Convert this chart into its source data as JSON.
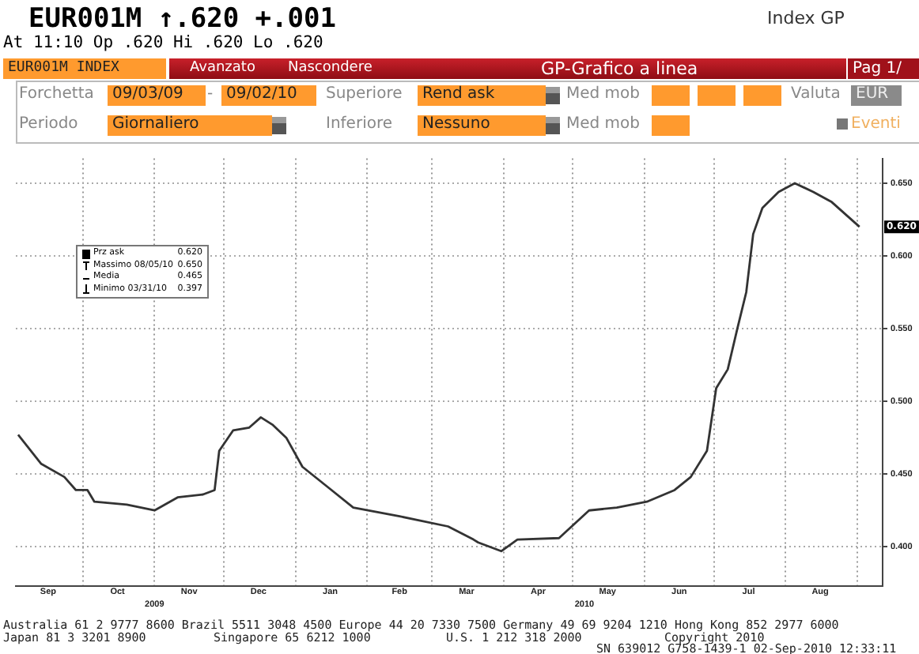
{
  "chart_data": {
    "type": "line",
    "title": "EUR001M ↑.620 +.001",
    "subtitle": "At 11:10  Op .620 Hi .620 Lo .620",
    "x": [
      "2009-09-03",
      "2009-09-13",
      "2009-09-23",
      "2009-09-28",
      "2009-10-03",
      "2009-10-06",
      "2009-10-20",
      "2009-11-01",
      "2009-11-11",
      "2009-11-22",
      "2009-11-27",
      "2009-11-29",
      "2009-12-05",
      "2009-12-12",
      "2009-12-17",
      "2009-12-22",
      "2009-12-28",
      "2010-01-04",
      "2010-01-15",
      "2010-01-26",
      "2010-02-15",
      "2010-03-08",
      "2010-03-19",
      "2010-03-21",
      "2010-03-31",
      "2010-04-07",
      "2010-04-25",
      "2010-05-08",
      "2010-05-20",
      "2010-06-02",
      "2010-06-14",
      "2010-06-21",
      "2010-06-28",
      "2010-07-02",
      "2010-07-07",
      "2010-07-11",
      "2010-07-15",
      "2010-07-18",
      "2010-07-22",
      "2010-07-29",
      "2010-08-05",
      "2010-08-13",
      "2010-08-21",
      "2010-09-02"
    ],
    "series": [
      {
        "name": "Prz ask",
        "color": "#333333",
        "values": [
          0.477,
          0.457,
          0.448,
          0.439,
          0.439,
          0.431,
          0.429,
          0.425,
          0.434,
          0.436,
          0.439,
          0.466,
          0.48,
          0.482,
          0.489,
          0.484,
          0.475,
          0.455,
          0.441,
          0.427,
          0.421,
          0.414,
          0.405,
          0.403,
          0.397,
          0.405,
          0.406,
          0.425,
          0.427,
          0.431,
          0.439,
          0.448,
          0.466,
          0.509,
          0.522,
          0.549,
          0.575,
          0.615,
          0.633,
          0.644,
          0.65,
          0.644,
          0.637,
          0.62
        ]
      }
    ],
    "xlim": [
      "2009-09-02",
      "2010-09-12"
    ],
    "xticks": [
      {
        "value": "2009-09-16",
        "label": "Sep"
      },
      {
        "value": "2009-10-01",
        "label": null
      },
      {
        "value": "2009-10-16",
        "label": "Oct"
      },
      {
        "value": "2009-11-01",
        "label": null
      },
      {
        "value": "2009-11-16",
        "label": "Nov"
      },
      {
        "value": "2009-12-01",
        "label": null
      },
      {
        "value": "2009-12-16",
        "label": "Dec"
      },
      {
        "value": "2010-01-01",
        "label": null
      },
      {
        "value": "2010-01-16",
        "label": "Jan"
      },
      {
        "value": "2010-02-01",
        "label": null
      },
      {
        "value": "2010-02-15",
        "label": "Feb"
      },
      {
        "value": "2010-03-01",
        "label": null
      },
      {
        "value": "2010-03-16",
        "label": "Mar"
      },
      {
        "value": "2010-04-01",
        "label": null
      },
      {
        "value": "2010-04-16",
        "label": "Apr"
      },
      {
        "value": "2010-05-01",
        "label": null
      },
      {
        "value": "2010-05-16",
        "label": "May"
      },
      {
        "value": "2010-06-01",
        "label": null
      },
      {
        "value": "2010-06-16",
        "label": "Jun"
      },
      {
        "value": "2010-07-01",
        "label": null
      },
      {
        "value": "2010-07-16",
        "label": "Jul"
      },
      {
        "value": "2010-08-01",
        "label": null
      },
      {
        "value": "2010-08-16",
        "label": "Aug"
      },
      {
        "value": "2010-09-01",
        "label": null
      }
    ],
    "x2lim": [
      "2009-09-02",
      "2010-09-12"
    ],
    "x2ticks": [
      {
        "value": "2009-11-01",
        "label": "2009"
      },
      {
        "value": "2010-05-06",
        "label": "2010"
      }
    ],
    "ylim": [
      0.373,
      0.667
    ],
    "yticks": [
      {
        "value": 0.4,
        "label": "0.400"
      },
      {
        "value": 0.45,
        "label": "0.450"
      },
      {
        "value": 0.5,
        "label": "0.500"
      },
      {
        "value": 0.55,
        "label": "0.550"
      },
      {
        "value": 0.6,
        "label": "0.600"
      },
      {
        "value": 0.65,
        "label": "0.650"
      }
    ],
    "grid": true,
    "legend": "top left",
    "marker": "none",
    "line_style": "solid",
    "annotations": [
      "Index GP",
      "EUR001M INDEX",
      "Avanzato",
      "Nascondere",
      "GP-Grafico a linea",
      "Pag 1/",
      "Forchetta",
      "09/03/09",
      "-",
      "09/02/10",
      "Superiore",
      "Rend ask",
      "Med mob",
      "Valuta",
      "EUR",
      "Periodo",
      "Giornaliero",
      "Inferiore",
      "Nessuno",
      "Med mob",
      "Eventi",
      "0.620",
      "Massimo 08/05/10",
      "0.650",
      "Media",
      "0.465",
      "Minimo 03/31/10",
      "0.397",
      "Australia 61 2 9777 8600 Brazil 5511 3048 4500 Europe 44 20 7330 7500 Germany 49 69 9204 1210 Hong Kong 852 2977 6000",
      "Japan 81 3 3201 8900",
      "Singapore 65 6212 1000",
      "U.S. 1 212 318 2000",
      "Copyright 2010",
      "SN 639012 G758-1439-1 02-Sep-2010 12:33:11",
      {
        "text": "0.620",
        "x": "2010-09-02",
        "y": 0.62
      }
    ]
  }
}
